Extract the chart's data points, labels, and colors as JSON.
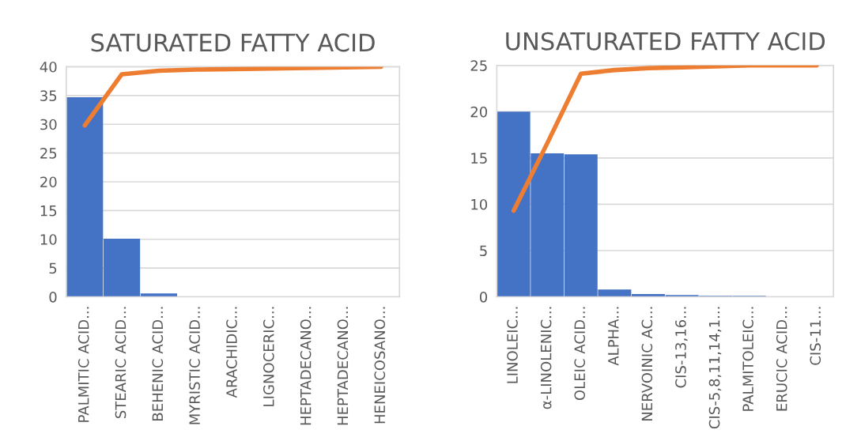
{
  "chart_data": [
    {
      "type": "bar",
      "title": "SATURATED FATTY ACID",
      "categories": [
        "PALMITIC ACID...",
        "STEARIC ACID...",
        "BEHENIC ACID...",
        "MYRISTIC ACID...",
        "ARACHIDIC...",
        "LIGNOCERIC...",
        "HEPTADECANO...",
        "HEPTADECANO...",
        "HENEICOSANO..."
      ],
      "series": [
        {
          "color": "#4472c4",
          "values": [
            34.7,
            10.1,
            0.6,
            0,
            0,
            0,
            0,
            0,
            0
          ]
        },
        {
          "type": "line",
          "color": "#ed7d31",
          "values": [
            29.8,
            38.7,
            39.3,
            39.5,
            39.6,
            39.7,
            39.8,
            39.9,
            40
          ]
        }
      ],
      "ylim": [
        0,
        40
      ],
      "yticks": [
        0,
        5,
        10,
        15,
        20,
        25,
        30,
        35,
        40
      ],
      "grid": "y"
    },
    {
      "type": "bar",
      "title": "UNSATURATED FATTY ACID",
      "categories": [
        "LINOLEIC...",
        "α-LINOLENIC...",
        "OLEIC ACID...",
        "ALPHA...",
        "NERVOINIC AC...",
        "CIS-13,16...",
        "CIS-5,8,11,14,1...",
        "PALMITOLEIC...",
        "ERUCIC ACID...",
        "CIS-11..."
      ],
      "series": [
        {
          "color": "#4472c4",
          "values": [
            20.0,
            15.5,
            15.4,
            0.8,
            0.3,
            0.2,
            0.1,
            0.1,
            0,
            0
          ]
        },
        {
          "type": "line",
          "color": "#ed7d31",
          "values": [
            9.3,
            16.6,
            24.1,
            24.5,
            24.7,
            24.8,
            24.9,
            25,
            25,
            25
          ]
        }
      ],
      "ylim": [
        0,
        25
      ],
      "yticks": [
        0,
        5,
        10,
        15,
        20,
        25
      ],
      "grid": "y"
    }
  ]
}
